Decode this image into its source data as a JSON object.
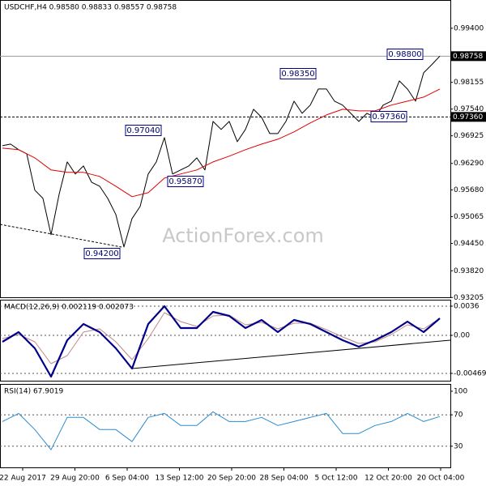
{
  "watermark": "ActionForex.com",
  "x_axis_labels": [
    "22 Aug 2017",
    "29 Aug 20:00",
    "6 Sep 04:00",
    "13 Sep 12:00",
    "20 Sep 20:00",
    "28 Sep 04:00",
    "5 Oct 12:00",
    "12 Oct 20:00",
    "20 Oct 04:00"
  ],
  "chart_data": [
    {
      "type": "line",
      "title": "USDCHF,H4 0.98580 0.98833 0.98557 0.98758",
      "ylim": [
        0.9321,
        1.0005
      ],
      "yticks": [
        {
          "value": 0.994,
          "label": "0.99400"
        },
        {
          "value": 0.98155,
          "label": "0.98155"
        },
        {
          "value": 0.9754,
          "label": "0.97540"
        },
        {
          "value": 0.96925,
          "label": "0.96925"
        },
        {
          "value": 0.9629,
          "label": "0.96290"
        },
        {
          "value": 0.9568,
          "label": "0.95680"
        },
        {
          "value": 0.95065,
          "label": "0.95065"
        },
        {
          "value": 0.9445,
          "label": "0.94450"
        },
        {
          "value": 0.9382,
          "label": "0.93820"
        },
        {
          "value": 0.93205,
          "label": "0.93205"
        }
      ],
      "price_lines": [
        {
          "value": 0.98758,
          "label": "0.98758"
        },
        {
          "value": 0.9736,
          "label": "0.97360"
        }
      ],
      "annotations": [
        "0.98800",
        "0.98350",
        "0.97040",
        "0.95870",
        "0.94200",
        "0.97360"
      ],
      "series": [
        {
          "color": "#000000",
          "values": [
            0.96698,
            0.96735,
            0.96605,
            0.96511,
            0.95673,
            0.95486,
            0.94648,
            0.9558,
            0.96325,
            0.96046,
            0.96232,
            0.95859,
            0.95766,
            0.95486,
            0.95114,
            0.94368,
            0.95021,
            0.953,
            0.96046,
            0.96325,
            0.96884,
            0.96046,
            0.96139,
            0.96232,
            0.96418,
            0.96139,
            0.97257,
            0.97071,
            0.97257,
            0.96791,
            0.97071,
            0.97536,
            0.9735,
            0.96977,
            0.96977,
            0.97257,
            0.97723,
            0.97443,
            0.9763,
            0.98002,
            0.98002,
            0.97723,
            0.9763,
            0.97443,
            0.97257,
            0.97443,
            0.9735,
            0.9763,
            0.97723,
            0.98189,
            0.98002,
            0.97723,
            0.98375,
            0.98561,
            0.98758
          ]
        },
        {
          "color": "#e00000",
          "values": [
            0.96642,
            0.96605,
            0.96418,
            0.96139,
            0.96083,
            0.96083,
            0.9599,
            0.95766,
            0.95524,
            0.95617,
            0.95952,
            0.96046,
            0.96139,
            0.96325,
            0.96456,
            0.96605,
            0.96735,
            0.96847,
            0.97015,
            0.9722,
            0.97406,
            0.97536,
            0.97499,
            0.97499,
            0.9763,
            0.97723,
            0.97816,
            0.98002
          ]
        }
      ]
    },
    {
      "type": "line",
      "title": "MACD(12,26,9) 0.002119 0.002073",
      "ylim": [
        -0.0056,
        0.0044
      ],
      "yticks": [
        0.0036,
        {
          "value": 0,
          "label": "0.00"
        },
        -0.004696
      ],
      "series": [
        {
          "color": "#c08888",
          "values": [
            -0.0004,
            0.0001,
            -0.0008,
            -0.0035,
            -0.0025,
            0.0004,
            0.0008,
            -0.0008,
            -0.003,
            -0.0004,
            0.0028,
            0.0017,
            0.0011,
            0.0024,
            0.0025,
            0.0013,
            0.0016,
            0.0008,
            0.0015,
            0.0015,
            0.0007,
            -0.0002,
            -0.001,
            -0.0008,
            0.0001,
            0.0013,
            0.0008,
            0.0021
          ]
        },
        {
          "color": "#00008b",
          "values": [
            -0.0008,
            0.0004,
            -0.0016,
            -0.0051,
            -0.0006,
            0.0014,
            0.0004,
            -0.0016,
            -0.0041,
            0.0014,
            0.0036,
            0.0009,
            0.0009,
            0.0029,
            0.0024,
            0.0009,
            0.0019,
            0.0004,
            0.0019,
            0.0014,
            0.0004,
            -0.0006,
            -0.0014,
            -0.0006,
            0.0004,
            0.0017,
            0.0004,
            0.0021
          ]
        }
      ]
    },
    {
      "type": "line",
      "title": "RSI(14) 67.9019",
      "ylim": [
        3.1,
        109.3
      ],
      "yticks": [
        100,
        70,
        30
      ],
      "series": [
        {
          "color": "#2a8cd0",
          "values": [
            61.5,
            71.8,
            51.3,
            25.6,
            66.7,
            66.7,
            51.3,
            51.3,
            35.9,
            66.7,
            71.8,
            56.4,
            56.4,
            73.8,
            61.5,
            61.5,
            66.7,
            56.4,
            61.5,
            66.7,
            71.8,
            46.2,
            46.2,
            56.4,
            61.5,
            71.8,
            61.5,
            67.9
          ]
        }
      ]
    }
  ]
}
